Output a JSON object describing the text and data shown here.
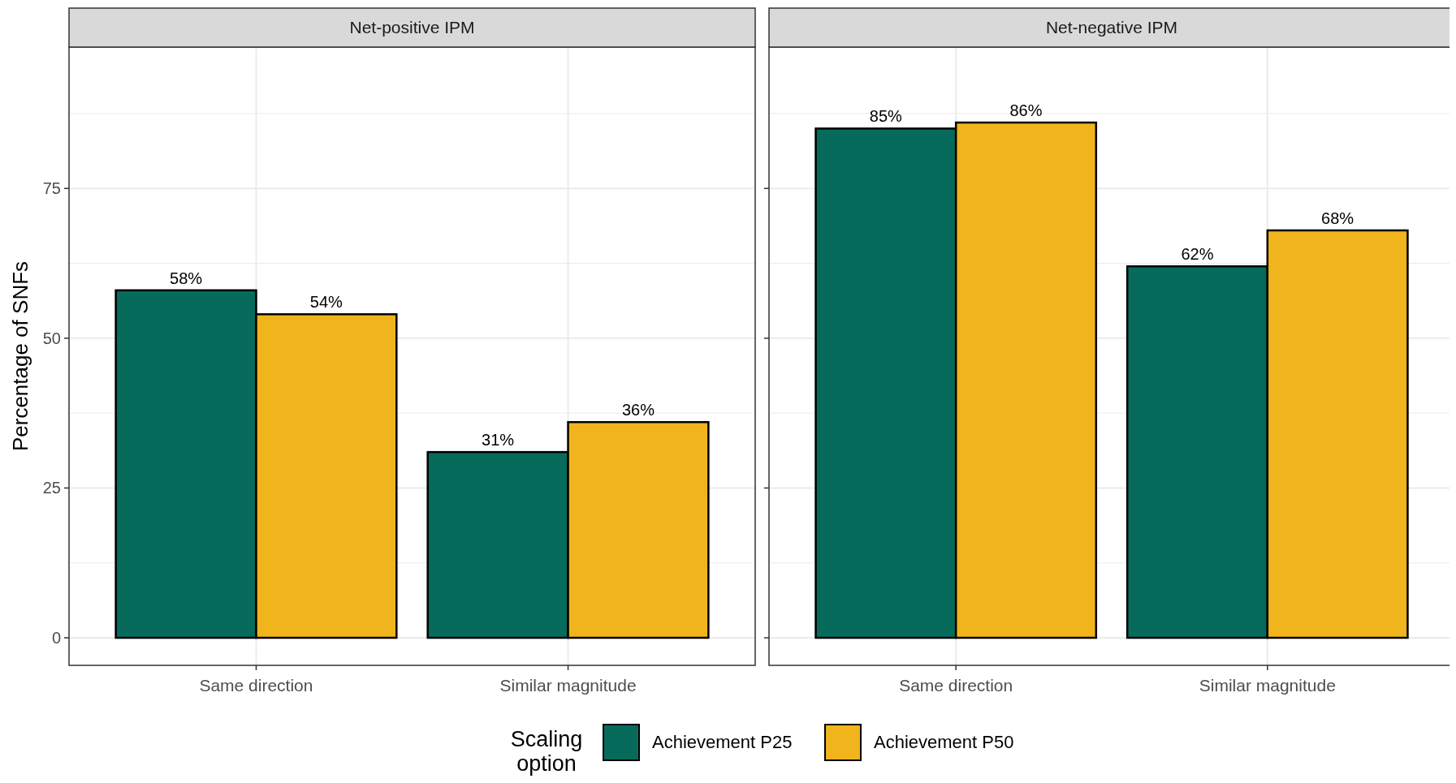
{
  "chart_data": [
    {
      "type": "bar",
      "title": "Net-positive IPM",
      "ylabel": "Percentage of SNFs",
      "legend_title": "Scaling option",
      "legend": "bottom",
      "categories": [
        "Same direction",
        "Similar magnitude"
      ],
      "series": [
        {
          "name": "Achievement P25",
          "color": "#076b5c",
          "values": [
            58,
            31
          ],
          "value_labels": [
            "58%",
            "31%"
          ]
        },
        {
          "name": "Achievement P50",
          "color": "#f0b41c",
          "values": [
            54,
            36
          ],
          "value_labels": [
            "54%",
            "36%"
          ]
        }
      ],
      "ylim": [
        -4.6,
        98.6
      ],
      "yticks": [
        0,
        {
          "value": 12.5,
          "label": null
        },
        25,
        {
          "value": 37.5,
          "label": null
        },
        50,
        {
          "value": 62.5,
          "label": null
        },
        75,
        {
          "value": 87.5,
          "label": null
        }
      ],
      "grid": true
    },
    {
      "type": "bar",
      "title": "Net-negative IPM",
      "categories": [
        "Same direction",
        "Similar magnitude"
      ],
      "series": [
        {
          "color": "#076b5c",
          "values": [
            85,
            62
          ],
          "value_labels": [
            "85%",
            "62%"
          ]
        },
        {
          "color": "#f0b41c",
          "values": [
            86,
            68
          ],
          "value_labels": [
            "86%",
            "68%"
          ]
        }
      ],
      "ylim": [
        -4.6,
        98.6
      ],
      "yticks": [
        0,
        {
          "value": 12.5,
          "label": null
        },
        25,
        {
          "value": 37.5,
          "label": null
        },
        50,
        {
          "value": 62.5,
          "label": null
        },
        75,
        {
          "value": 87.5,
          "label": null
        }
      ],
      "grid": true,
      "tick_labels": "x"
    }
  ]
}
